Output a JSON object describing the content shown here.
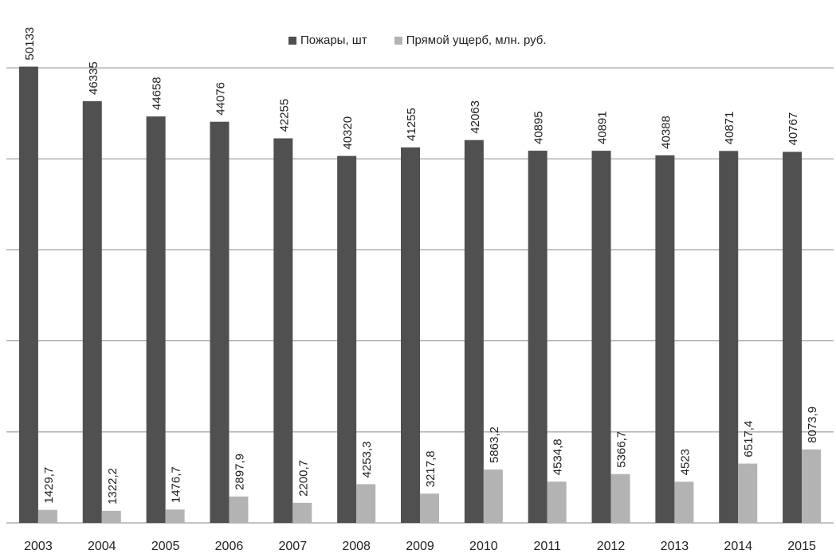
{
  "chart_data": {
    "type": "bar",
    "categories": [
      "2003",
      "2004",
      "2005",
      "2006",
      "2007",
      "2008",
      "2009",
      "2010",
      "2011",
      "2012",
      "2013",
      "2014",
      "2015"
    ],
    "series": [
      {
        "name": "Пожары, шт",
        "color": "#505050",
        "values": [
          50133,
          46335,
          44658,
          44076,
          42255,
          40320,
          41255,
          42063,
          40895,
          40891,
          40388,
          40871,
          40767
        ],
        "labels": [
          "50133",
          "46335",
          "44658",
          "44076",
          "42255",
          "40320",
          "41255",
          "42063",
          "40895",
          "40891",
          "40388",
          "40871",
          "40767"
        ]
      },
      {
        "name": "Прямой ущерб, млн. руб.",
        "color": "#b3b3b3",
        "values": [
          1429.7,
          1322.2,
          1476.7,
          2897.9,
          2200.7,
          4253.3,
          3217.8,
          5863.2,
          4534.8,
          5366.7,
          4523,
          6517.4,
          8073.9
        ],
        "labels": [
          "1429,7",
          "1322,2",
          "1476,7",
          "2897,9",
          "2200,7",
          "4253,3",
          "3217,8",
          "5863,2",
          "4534,8",
          "5366,7",
          "4523",
          "6517,4",
          "8073,9"
        ]
      }
    ],
    "ylim": [
      0,
      55000
    ],
    "grid": true,
    "legend_position": "top-center"
  }
}
